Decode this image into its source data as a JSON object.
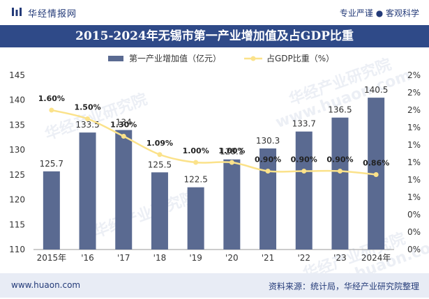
{
  "header": {
    "brand": "华经情报网",
    "tagline": "专业严谨 ● 客观科学"
  },
  "footer": {
    "url": "www.huaon.com",
    "source": "资料来源：统计局，华经产业研究院整理"
  },
  "watermarks": [
    "华经产业研究院",
    "www.huaon.com",
    "华经产业研究院",
    "华经产业研究院",
    "华经产业研究院",
    "www.huaon.com"
  ],
  "colors": {
    "bar": "#5a6a91",
    "line": "#fbe28a",
    "title_band": "#2f4a88",
    "brand": "#233a78"
  },
  "chart_data": {
    "type": "bar",
    "title": "2015-2024年无锡市第一产业增加值及占GDP比重",
    "categories": [
      "2015年",
      "'16",
      "'17",
      "'18",
      "'19",
      "'20",
      "'21",
      "'22",
      "'23",
      "2024年"
    ],
    "series": [
      {
        "name": "第一产业增加值（亿元）",
        "type": "bar",
        "axis": "left",
        "values": [
          125.7,
          133.5,
          134,
          125.5,
          122.5,
          128.1,
          130.3,
          133.7,
          136.5,
          140.5
        ],
        "labels": [
          "125.7",
          "133.5",
          "134",
          "125.5",
          "122.5",
          "128.1",
          "130.3",
          "133.7",
          "136.5",
          "140.5"
        ]
      },
      {
        "name": "占GDP比重（%）",
        "type": "line",
        "axis": "right",
        "values": [
          1.6,
          1.5,
          1.3,
          1.09,
          1.0,
          1.0,
          0.9,
          0.9,
          0.9,
          0.86
        ],
        "labels": [
          "1.60%",
          "1.50%",
          "1.30%",
          "1.09%",
          "1.00%",
          "1.00%",
          "0.90%",
          "0.90%",
          "0.90%",
          "0.86%"
        ]
      }
    ],
    "ylim_left": [
      110,
      145
    ],
    "yticks_left": [
      "110",
      "115",
      "120",
      "125",
      "130",
      "135",
      "140",
      "145"
    ],
    "ylim_right": [
      0,
      2
    ],
    "yticks_right": [
      "0%",
      "0%",
      "0%",
      "1%",
      "1%",
      "1%",
      "1%",
      "1%",
      "2%",
      "2%",
      "2%"
    ],
    "grid": false,
    "legend": "top-center"
  }
}
